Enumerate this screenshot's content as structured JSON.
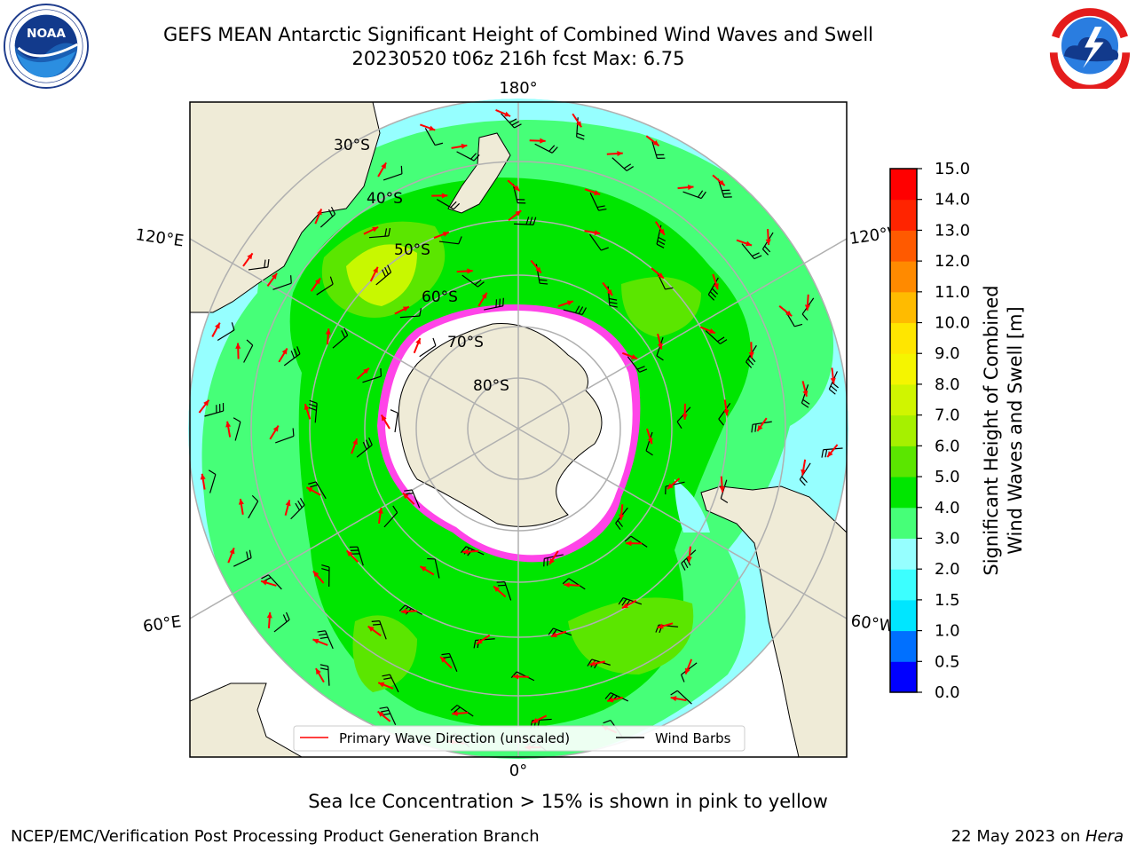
{
  "header": {
    "title_line1": "GEFS MEAN Antarctic Significant Height of Combined Wind Waves and Swell",
    "title_line2": "20230520 t06z 216h fcst   Max: 6.75"
  },
  "logos": {
    "left": "noaa-logo",
    "right": "nws-logo"
  },
  "map": {
    "projection": "south-polar-stereographic",
    "lon_labels": {
      "top": "180°",
      "bottom": "0°",
      "left_upper": "120°E",
      "left_lower": "60°E",
      "right_upper": "120°W",
      "right_lower": "60°W"
    },
    "lat_labels": [
      "30°S",
      "40°S",
      "50°S",
      "60°S",
      "70°S",
      "80°S"
    ],
    "legend": {
      "wave_direction": "Primary Wave Direction (unscaled)",
      "wind_barbs": "Wind Barbs"
    },
    "colors": {
      "land": "#efebd7",
      "ice": "#ff44e8",
      "wave_arrow": "#ff0000",
      "barb": "#000000"
    }
  },
  "colorbar": {
    "label_line1": "Significant Height of Combined",
    "label_line2": "Wind Waves and Swell [m]",
    "ticks": [
      "0.0",
      "0.5",
      "1.0",
      "1.5",
      "2.0",
      "3.0",
      "4.0",
      "5.0",
      "6.0",
      "7.0",
      "8.0",
      "9.0",
      "10.0",
      "11.0",
      "12.0",
      "13.0",
      "14.0",
      "15.0"
    ],
    "colors": [
      "#0000ff",
      "#0070ff",
      "#00e6ff",
      "#3cffff",
      "#96ffff",
      "#46ff78",
      "#00e600",
      "#5be600",
      "#a6f000",
      "#d0f500",
      "#f5f500",
      "#ffe600",
      "#ffbb00",
      "#ff8a00",
      "#ff5a00",
      "#ff2400",
      "#ff0000"
    ]
  },
  "footer": {
    "note": "Sea Ice Concentration > 15% is shown in pink to yellow",
    "credit": "NCEP/EMC/Verification Post Processing Product Generation Branch",
    "date_prefix": "22 May 2023 on ",
    "machine": "Hera"
  }
}
